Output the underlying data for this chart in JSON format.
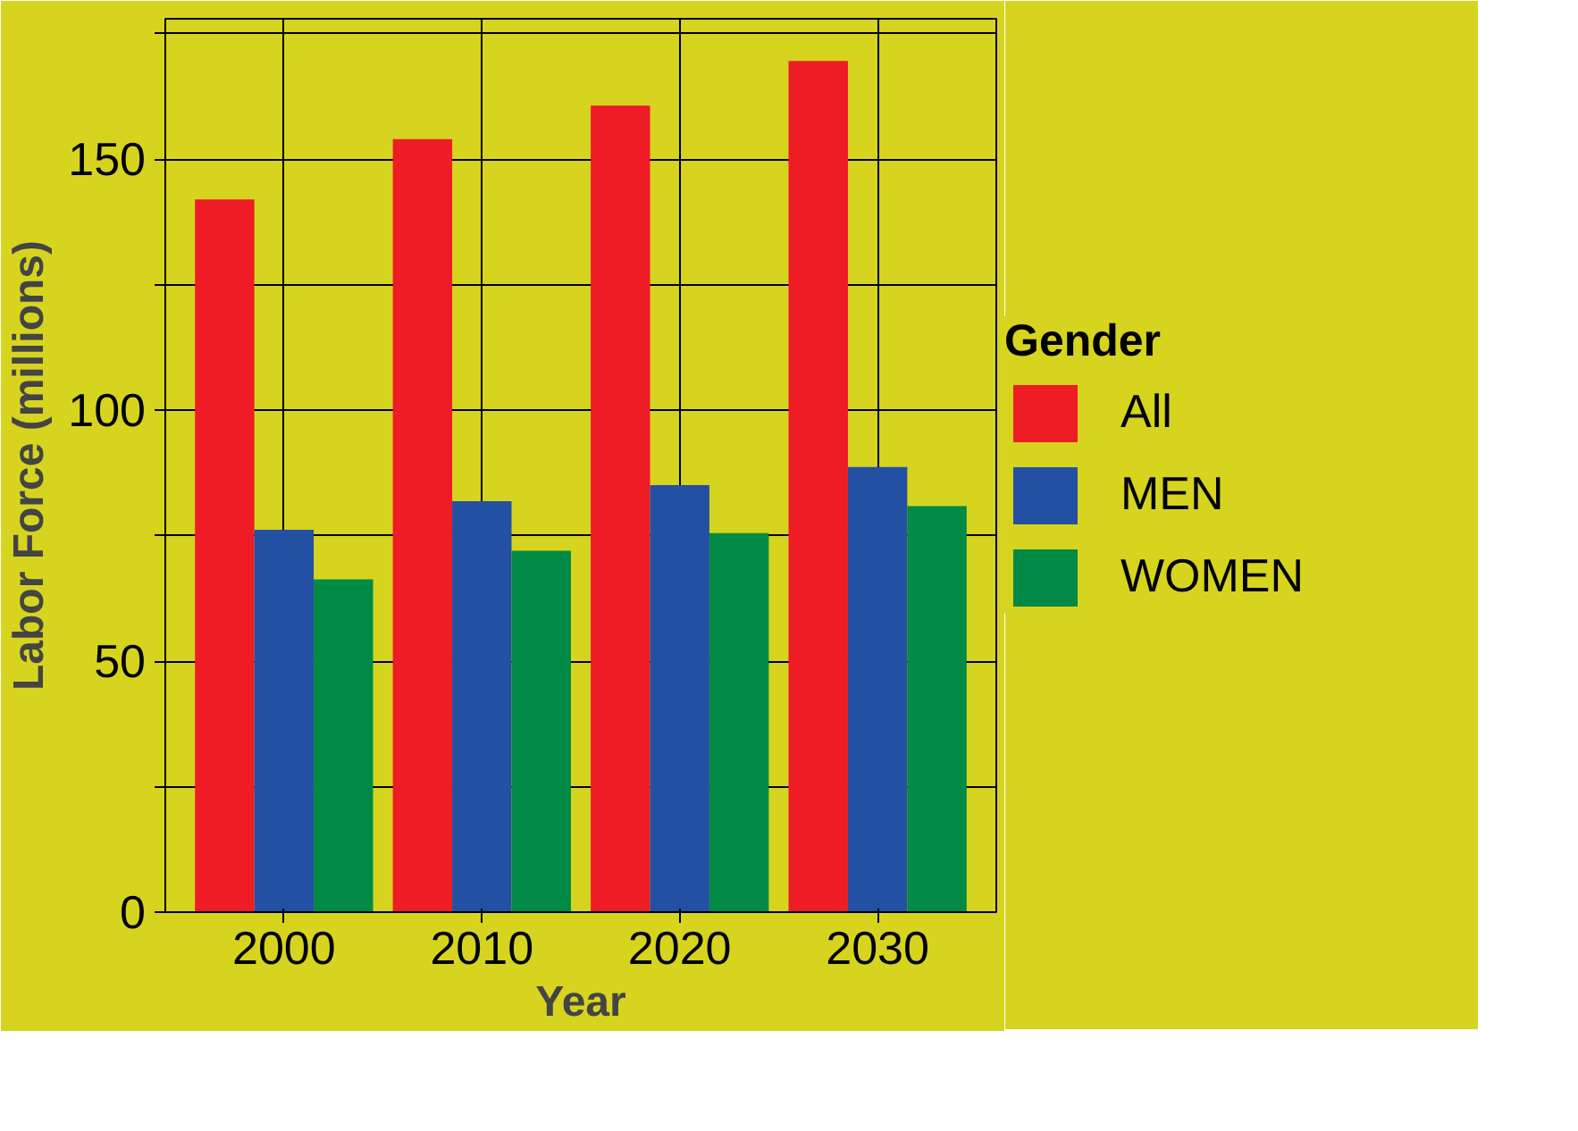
{
  "chart_data": {
    "type": "bar",
    "xlabel": "Year",
    "ylabel": "Labor Force (millions)",
    "legend_title": "Gender",
    "categories": [
      "2000",
      "2010",
      "2020",
      "2030"
    ],
    "series": [
      {
        "name": "All",
        "color": "#ee1c25",
        "values": [
          142,
          154,
          160.7,
          169.6
        ]
      },
      {
        "name": "MEN",
        "color": "#2450a4",
        "values": [
          76.2,
          81.9,
          85.1,
          88.7
        ]
      },
      {
        "name": "WOMEN",
        "color": "#008a45",
        "values": [
          66.3,
          72,
          75.5,
          80.9
        ]
      }
    ],
    "ylim": [
      0,
      178
    ],
    "yticks": [
      0,
      {
        "value": 25,
        "label": null
      },
      50,
      {
        "value": 75,
        "label": null
      },
      100,
      {
        "value": 125,
        "label": null
      },
      150,
      {
        "value": 175,
        "label": null
      }
    ],
    "grid": true,
    "legend": "right"
  }
}
